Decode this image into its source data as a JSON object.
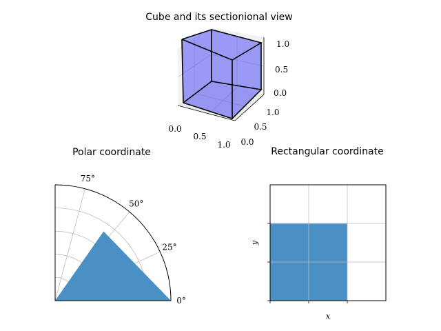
{
  "chart_data": [
    {
      "type": "3d-surface",
      "title": "Cube and its sectionional view",
      "shape": "unit cube",
      "face_color": "#0000ff",
      "face_alpha": 0.2,
      "edge_color": "#000000",
      "x_ticks": [
        "0.0",
        "0.5",
        "1.0"
      ],
      "y_ticks": [
        "0.0",
        "0.5",
        "1.0"
      ],
      "z_ticks": [
        "0.0",
        "0.5",
        "1.0"
      ],
      "grid": true
    },
    {
      "type": "polar-area",
      "title": "Polar coordinate",
      "theta_range_deg": [
        0,
        90
      ],
      "r_max": 1.0,
      "filled_triangle_vertices_deg_r": [
        [
          0,
          0
        ],
        [
          0,
          1.0
        ],
        [
          55,
          0.73
        ]
      ],
      "theta_ticks": [
        "0°",
        "25°",
        "50°",
        "75°"
      ],
      "fill_color": "#4a90c4",
      "grid": true
    },
    {
      "type": "area",
      "title": "Rectangular coordinate",
      "xlabel": "x",
      "ylabel": "y",
      "xlim": [
        0,
        3
      ],
      "ylim": [
        0,
        3
      ],
      "filled_rect": {
        "x0": 0,
        "x1": 2,
        "y0": 0,
        "y1": 2
      },
      "fill_color": "#4a90c4",
      "grid": true
    }
  ]
}
